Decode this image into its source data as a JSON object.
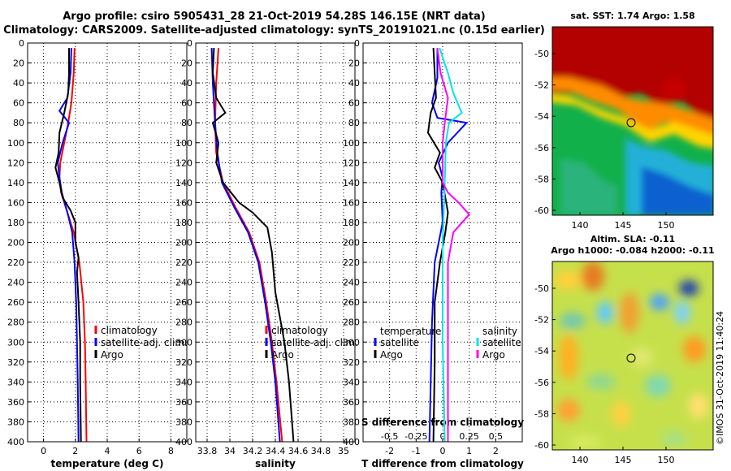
{
  "title_line1": "Argo profile: csiro 5905431_28 21-Oct-2019 54.28S 146.15E (NRT data)",
  "title_line2": "Climatology: CARS2009. Satellite-adjusted climatology: synTS_20191021.nc (0.15d earlier)",
  "watermark": "©IMOS 31-Oct-2019 11:40:24",
  "colors": {
    "clim": "#ff0000",
    "sat": "#0000ff",
    "argo": "#000000",
    "sat_s": "#00e5e5",
    "clim_s": "#ff00ff"
  },
  "chart_data": [
    {
      "type": "line",
      "id": "temp",
      "xlabel": "temperature (deg C)",
      "ylabel": "",
      "xlim": [
        -1,
        9
      ],
      "ylim": [
        400,
        0
      ],
      "xticks": [
        0,
        2,
        4,
        6,
        8
      ],
      "yticks": [
        0,
        20,
        40,
        60,
        80,
        100,
        120,
        140,
        160,
        180,
        200,
        220,
        240,
        260,
        280,
        300,
        320,
        340,
        360,
        380,
        400
      ],
      "grid": true,
      "legend": [
        "climatology",
        "satellite-adj. clim.",
        "Argo"
      ],
      "series": [
        {
          "name": "climatology",
          "color": "clim",
          "points": [
            [
              1.95,
              5
            ],
            [
              1.9,
              30
            ],
            [
              1.75,
              60
            ],
            [
              1.55,
              80
            ],
            [
              1.3,
              100
            ],
            [
              1.05,
              120
            ],
            [
              1.0,
              135
            ],
            [
              1.1,
              150
            ],
            [
              1.5,
              170
            ],
            [
              1.9,
              190
            ],
            [
              2.25,
              220
            ],
            [
              2.5,
              260
            ],
            [
              2.6,
              300
            ],
            [
              2.65,
              340
            ],
            [
              2.7,
              400
            ]
          ]
        },
        {
          "name": "satellite-adj. clim.",
          "color": "sat",
          "points": [
            [
              1.75,
              5
            ],
            [
              1.7,
              30
            ],
            [
              1.5,
              55
            ],
            [
              1.0,
              68
            ],
            [
              1.6,
              80
            ],
            [
              1.2,
              100
            ],
            [
              0.9,
              120
            ],
            [
              1.0,
              135
            ],
            [
              1.15,
              150
            ],
            [
              1.5,
              170
            ],
            [
              1.8,
              190
            ],
            [
              1.95,
              220
            ],
            [
              2.05,
              260
            ],
            [
              2.1,
              300
            ],
            [
              2.15,
              340
            ],
            [
              2.2,
              400
            ]
          ]
        },
        {
          "name": "Argo",
          "color": "argo",
          "points": [
            [
              1.6,
              5
            ],
            [
              1.6,
              30
            ],
            [
              1.55,
              50
            ],
            [
              1.3,
              70
            ],
            [
              1.0,
              90
            ],
            [
              0.95,
              110
            ],
            [
              0.75,
              125
            ],
            [
              1.0,
              140
            ],
            [
              1.2,
              155
            ],
            [
              1.7,
              168
            ],
            [
              2.0,
              180
            ],
            [
              2.0,
              200
            ],
            [
              2.2,
              215
            ],
            [
              2.1,
              230
            ],
            [
              2.2,
              260
            ],
            [
              2.3,
              300
            ],
            [
              2.3,
              340
            ],
            [
              2.35,
              400
            ]
          ]
        }
      ]
    },
    {
      "type": "line",
      "id": "sal",
      "xlabel": "salinity",
      "ylabel": "",
      "xlim": [
        33.7,
        35.1
      ],
      "ylim": [
        400,
        0
      ],
      "xticks": [
        "33.8",
        "34",
        "34.2",
        "34.4",
        "34.6",
        "34.8",
        "35"
      ],
      "yticks": [
        0,
        20,
        40,
        60,
        80,
        100,
        120,
        140,
        160,
        180,
        200,
        220,
        240,
        260,
        280,
        300,
        320,
        340,
        360,
        380,
        400
      ],
      "grid": true,
      "legend": [
        "climatology",
        "satellite-adj. clim.",
        "Argo"
      ],
      "series": [
        {
          "name": "climatology",
          "color": "clim",
          "points": [
            [
              33.9,
              5
            ],
            [
              33.88,
              40
            ],
            [
              33.87,
              80
            ],
            [
              33.88,
              110
            ],
            [
              33.94,
              140
            ],
            [
              34.05,
              165
            ],
            [
              34.17,
              190
            ],
            [
              34.26,
              220
            ],
            [
              34.32,
              260
            ],
            [
              34.37,
              300
            ],
            [
              34.41,
              340
            ],
            [
              34.46,
              400
            ]
          ]
        },
        {
          "name": "satellite-adj. clim.",
          "color": "sat",
          "points": [
            [
              33.84,
              5
            ],
            [
              33.85,
              40
            ],
            [
              33.87,
              80
            ],
            [
              33.89,
              110
            ],
            [
              33.93,
              140
            ],
            [
              34.04,
              165
            ],
            [
              34.16,
              190
            ],
            [
              34.25,
              220
            ],
            [
              34.31,
              260
            ],
            [
              34.36,
              300
            ],
            [
              34.4,
              340
            ],
            [
              34.44,
              400
            ]
          ]
        },
        {
          "name": "Argo",
          "color": "argo",
          "points": [
            [
              33.86,
              5
            ],
            [
              33.85,
              30
            ],
            [
              33.88,
              55
            ],
            [
              33.96,
              70
            ],
            [
              33.85,
              80
            ],
            [
              33.9,
              100
            ],
            [
              33.88,
              120
            ],
            [
              33.94,
              140
            ],
            [
              34.08,
              160
            ],
            [
              34.2,
              170
            ],
            [
              34.33,
              185
            ],
            [
              34.37,
              210
            ],
            [
              34.4,
              250
            ],
            [
              34.48,
              300
            ],
            [
              34.52,
              340
            ],
            [
              34.56,
              400
            ]
          ]
        }
      ]
    },
    {
      "type": "line",
      "id": "diff",
      "xlabel": "T difference from climatology",
      "xlabel_top": "S difference from climatology",
      "ylabel": "",
      "xlim": [
        -3,
        3
      ],
      "ylim": [
        400,
        0
      ],
      "xticks": [
        "-2",
        "-1",
        "0",
        "1",
        "2"
      ],
      "xticks_top": [
        "-0.5",
        "-0.25",
        "0",
        "0.25",
        "0.5"
      ],
      "yticks": [
        0,
        20,
        40,
        60,
        80,
        100,
        120,
        140,
        160,
        180,
        200,
        220,
        240,
        260,
        280,
        300,
        320,
        340,
        360,
        380,
        400
      ],
      "grid": true,
      "legend_left_title": "temperature",
      "legend_left": [
        "satellite",
        "Argo"
      ],
      "legend_right_title": "salinity",
      "legend_right": [
        "satellite",
        "Argo"
      ],
      "series": [
        {
          "name": "T satellite",
          "color": "sat",
          "points": [
            [
              -0.2,
              5
            ],
            [
              -0.2,
              35
            ],
            [
              -0.4,
              60
            ],
            [
              -0.2,
              75
            ],
            [
              0.9,
              80
            ],
            [
              0.2,
              100
            ],
            [
              -0.15,
              120
            ],
            [
              0.0,
              135
            ],
            [
              -0.05,
              150
            ],
            [
              0.0,
              180
            ],
            [
              -0.3,
              220
            ],
            [
              -0.4,
              280
            ],
            [
              -0.45,
              340
            ],
            [
              -0.5,
              400
            ]
          ]
        },
        {
          "name": "T Argo",
          "color": "argo",
          "points": [
            [
              -0.35,
              5
            ],
            [
              -0.3,
              30
            ],
            [
              -0.25,
              55
            ],
            [
              -0.45,
              70
            ],
            [
              -0.55,
              90
            ],
            [
              -0.1,
              110
            ],
            [
              -0.3,
              125
            ],
            [
              0.0,
              140
            ],
            [
              0.1,
              155
            ],
            [
              0.2,
              170
            ],
            [
              0.1,
              190
            ],
            [
              -0.1,
              220
            ],
            [
              -0.3,
              260
            ],
            [
              -0.3,
              320
            ],
            [
              -0.35,
              400
            ]
          ]
        },
        {
          "name": "S satellite",
          "color": "sat_s",
          "points": [
            [
              -0.03,
              5
            ],
            [
              0.05,
              30
            ],
            [
              0.1,
              50
            ],
            [
              0.18,
              70
            ],
            [
              0.06,
              80
            ],
            [
              0.03,
              100
            ],
            [
              0.02,
              140
            ],
            [
              0.0,
              200
            ],
            [
              0.0,
              300
            ],
            [
              0.02,
              400
            ]
          ]
        },
        {
          "name": "S Argo",
          "color": "clim_s",
          "points": [
            [
              -0.05,
              5
            ],
            [
              -0.02,
              30
            ],
            [
              0.05,
              55
            ],
            [
              0.02,
              80
            ],
            [
              0.0,
              100
            ],
            [
              0.0,
              140
            ],
            [
              0.05,
              150
            ],
            [
              0.15,
              160
            ],
            [
              0.25,
              172
            ],
            [
              0.1,
              190
            ],
            [
              0.05,
              220
            ],
            [
              0.05,
              300
            ],
            [
              0.05,
              400
            ]
          ]
        }
      ]
    }
  ],
  "sst_map": {
    "title": "sat. SST: 1.74 Argo: 1.58",
    "xticks": [
      "140",
      "145",
      "150"
    ],
    "yticks": [
      "-50",
      "-52",
      "-54",
      "-56",
      "-58",
      "-60"
    ]
  },
  "sla_map": {
    "title1": "Altim. SLA: -0.11",
    "title2": "Argo h1000: -0.084 h2000: -0.11",
    "xticks": [
      "140",
      "145",
      "150"
    ],
    "yticks": [
      "-50",
      "-52",
      "-54",
      "-56",
      "-58",
      "-60"
    ]
  }
}
